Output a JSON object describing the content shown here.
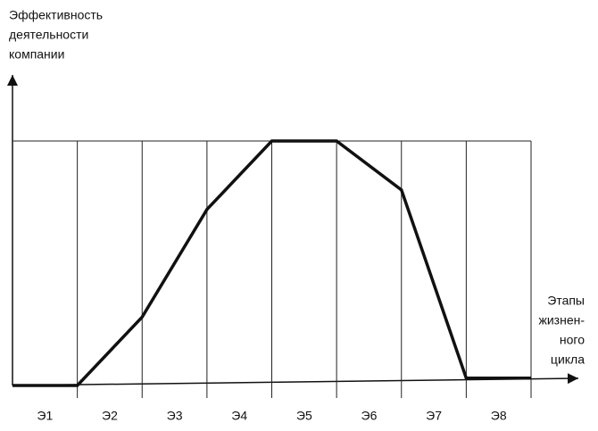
{
  "chart_data": {
    "type": "line",
    "y_label": [
      "Эффективность",
      "деятельности",
      "компании"
    ],
    "x_label": [
      "Этапы",
      "жизнен-",
      "ного",
      "цикла"
    ],
    "stages": [
      "Э1",
      "Э2",
      "Э3",
      "Э4",
      "Э5",
      "Э6",
      "Э7",
      "Э8"
    ],
    "x": [
      0,
      1,
      2,
      3,
      4,
      5,
      6,
      7,
      8
    ],
    "values": [
      0,
      0,
      28,
      72,
      100,
      100,
      80,
      3,
      3
    ],
    "xlim": [
      0,
      8
    ],
    "ylim": [
      0,
      100
    ],
    "color": "#111111",
    "grid": true
  }
}
